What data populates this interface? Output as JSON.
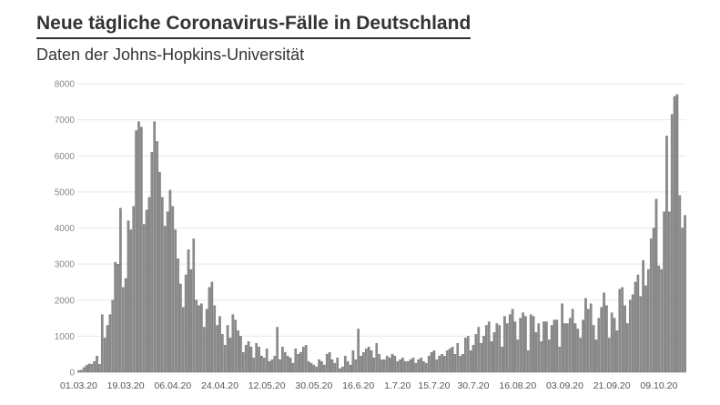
{
  "chart_data": {
    "type": "bar",
    "title": "Neue tägliche Coronavirus-Fälle in Deutschland",
    "subtitle": "Daten der Johns-Hopkins-Universität",
    "xlabel": "",
    "ylabel": "",
    "ylim": [
      0,
      8000
    ],
    "yticks": [
      0,
      1000,
      2000,
      3000,
      4000,
      5000,
      6000,
      7000,
      8000
    ],
    "grid": true,
    "x_tick_labels": [
      "01.03.20",
      "19.03.20",
      "06.04.20",
      "24.04.20",
      "12.05.20",
      "30.05.20",
      "16.6.20",
      "1.7.20",
      "15.7.20",
      "30.7.20",
      "16.08.20",
      "03.09.20",
      "21.09.20",
      "09.10.20"
    ],
    "x_tick_index": [
      0,
      18,
      36,
      54,
      72,
      90,
      107,
      122,
      136,
      151,
      168,
      186,
      204,
      222
    ],
    "values": [
      50,
      60,
      130,
      190,
      230,
      220,
      300,
      450,
      220,
      1600,
      950,
      1300,
      1600,
      2000,
      3050,
      3000,
      4550,
      2350,
      2600,
      4200,
      3950,
      4600,
      6700,
      6950,
      6800,
      4100,
      4500,
      4850,
      6100,
      6950,
      6400,
      5550,
      4850,
      4050,
      4450,
      5050,
      4600,
      3950,
      3150,
      2450,
      1800,
      2700,
      3400,
      2850,
      3700,
      2000,
      1850,
      1900,
      1250,
      1750,
      2350,
      2500,
      1850,
      1300,
      1550,
      1050,
      750,
      1300,
      950,
      1600,
      1450,
      1150,
      1000,
      550,
      750,
      850,
      700,
      400,
      800,
      700,
      450,
      400,
      650,
      300,
      350,
      450,
      1250,
      350,
      700,
      550,
      450,
      400,
      250,
      650,
      500,
      550,
      700,
      750,
      300,
      250,
      200,
      150,
      350,
      300,
      200,
      500,
      550,
      350,
      250,
      400,
      100,
      150,
      450,
      300,
      200,
      600,
      350,
      1200,
      450,
      550,
      650,
      700,
      600,
      400,
      800,
      500,
      350,
      350,
      450,
      400,
      500,
      450,
      300,
      350,
      400,
      300,
      300,
      350,
      400,
      250,
      350,
      400,
      300,
      250,
      450,
      550,
      600,
      350,
      450,
      500,
      450,
      600,
      650,
      700,
      500,
      800,
      450,
      500,
      950,
      1000,
      600,
      750,
      1050,
      1250,
      800,
      1000,
      1300,
      1400,
      850,
      1100,
      1350,
      1300,
      700,
      1550,
      1350,
      1600,
      1750,
      1400,
      900,
      1500,
      1650,
      1550,
      600,
      1600,
      1550,
      1100,
      1350,
      850,
      1400,
      1400,
      900,
      1300,
      1450,
      1450,
      700,
      1900,
      1350,
      1350,
      1500,
      1750,
      1350,
      1200,
      950,
      1450,
      2050,
      1750,
      1900,
      1300,
      900,
      1500,
      1800,
      2200,
      1850,
      950,
      1650,
      1500,
      1150,
      2300,
      2350,
      1850,
      1350,
      2000,
      2150,
      2500,
      2700,
      2100,
      3100,
      2400,
      2850,
      3700,
      4000,
      4800,
      2950,
      2850,
      4450,
      6550,
      4450,
      7150,
      7650,
      7700,
      4900,
      4000,
      4350
    ]
  }
}
